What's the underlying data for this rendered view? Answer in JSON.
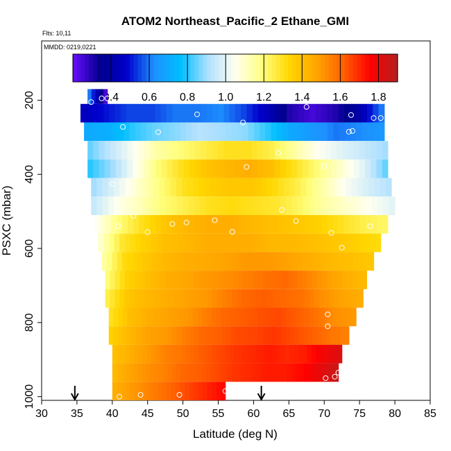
{
  "chart_data": {
    "type": "heatmap",
    "title": "ATOM2 Northeast_Pacific_2 Ethane_GMI",
    "flights_label": "Flts: 10,11",
    "date_label": "MMDD: 0219,0221",
    "xlabel": "Latitude (deg N)",
    "ylabel": "PSXC (mbar)",
    "xlim": [
      30,
      85
    ],
    "ylim": [
      1010,
      40
    ],
    "x_ticks": [
      30,
      35,
      40,
      45,
      50,
      55,
      60,
      65,
      70,
      75,
      80,
      85
    ],
    "y_ticks": [
      200,
      400,
      600,
      800,
      1000
    ],
    "colorbar": {
      "min": 0.2,
      "max": 1.9,
      "ticks": [
        0.4,
        0.6,
        0.8,
        1.0,
        1.2,
        1.4,
        1.6,
        1.8
      ],
      "tick_labels": [
        "0.4",
        "0.6",
        "0.8",
        "1.0",
        "1.2",
        "1.4",
        "1.6",
        "1.8"
      ],
      "colors": [
        "#6a0dff",
        "#00008b",
        "#0000cd",
        "#1e90ff",
        "#00bfff",
        "#b0e0ff",
        "#fffff0",
        "#ffff80",
        "#ffd700",
        "#ffa500",
        "#ff6000",
        "#ff0000",
        "#b22222"
      ]
    },
    "bands": [
      {
        "p_top": 170,
        "p_bot": 210,
        "lat_start": 36.5,
        "lat_end": 39.3,
        "values": [
          0.6,
          0.25
        ]
      },
      {
        "p_top": 210,
        "p_bot": 260,
        "lat_start": 35.5,
        "lat_end": 78.5,
        "values": [
          0.45,
          0.5,
          0.55,
          0.55,
          0.6,
          0.6,
          0.62,
          0.55,
          0.45,
          0.3,
          0.25,
          0.3,
          0.4,
          0.6
        ]
      },
      {
        "p_top": 260,
        "p_bot": 310,
        "lat_start": 36.0,
        "lat_end": 78.5,
        "values": [
          0.7,
          0.72,
          0.8,
          0.85,
          0.88,
          0.92,
          0.9,
          0.88,
          0.8,
          0.7,
          0.65,
          0.6,
          0.62,
          0.65
        ]
      },
      {
        "p_top": 310,
        "p_bot": 360,
        "lat_start": 36.5,
        "lat_end": 79.0,
        "values": [
          0.85,
          0.95,
          1.05,
          1.15,
          1.2,
          1.25,
          1.3,
          1.3,
          1.25,
          1.15,
          1.05,
          1.0,
          0.95,
          0.9
        ]
      },
      {
        "p_top": 360,
        "p_bot": 410,
        "lat_start": 36.5,
        "lat_end": 79.0,
        "values": [
          0.8,
          0.9,
          1.05,
          1.2,
          1.3,
          1.38,
          1.42,
          1.45,
          1.4,
          1.3,
          1.2,
          1.1,
          1.0,
          0.85
        ]
      },
      {
        "p_top": 410,
        "p_bot": 460,
        "lat_start": 37.0,
        "lat_end": 79.5,
        "values": [
          0.9,
          1.0,
          1.1,
          1.2,
          1.3,
          1.35,
          1.38,
          1.38,
          1.32,
          1.25,
          1.15,
          1.05,
          0.98,
          0.92
        ]
      },
      {
        "p_top": 460,
        "p_bot": 510,
        "lat_start": 37.0,
        "lat_end": 80.0,
        "values": [
          0.95,
          1.05,
          1.12,
          1.2,
          1.25,
          1.3,
          1.32,
          1.3,
          1.28,
          1.22,
          1.15,
          1.1,
          1.05,
          1.0
        ]
      },
      {
        "p_top": 510,
        "p_bot": 560,
        "lat_start": 37.5,
        "lat_end": 79.0,
        "values": [
          1.05,
          1.2,
          1.3,
          1.38,
          1.42,
          1.45,
          1.45,
          1.42,
          1.4,
          1.38,
          1.35,
          1.3,
          1.25,
          1.22
        ]
      },
      {
        "p_top": 560,
        "p_bot": 610,
        "lat_start": 38.0,
        "lat_end": 78.0,
        "values": [
          1.1,
          1.28,
          1.35,
          1.4,
          1.42,
          1.45,
          1.45,
          1.45,
          1.42,
          1.42,
          1.4,
          1.38,
          1.35,
          1.32
        ]
      },
      {
        "p_top": 610,
        "p_bot": 660,
        "lat_start": 38.5,
        "lat_end": 77.0,
        "values": [
          1.15,
          1.32,
          1.38,
          1.42,
          1.45,
          1.46,
          1.48,
          1.5,
          1.5,
          1.48,
          1.45,
          1.42,
          1.4,
          1.38
        ]
      },
      {
        "p_top": 660,
        "p_bot": 710,
        "lat_start": 39.0,
        "lat_end": 76.0,
        "values": [
          1.2,
          1.35,
          1.4,
          1.45,
          1.47,
          1.5,
          1.52,
          1.55,
          1.58,
          1.6,
          1.55,
          1.5,
          1.45,
          1.42
        ]
      },
      {
        "p_top": 710,
        "p_bot": 760,
        "lat_start": 39.0,
        "lat_end": 75.5,
        "values": [
          1.25,
          1.38,
          1.42,
          1.45,
          1.48,
          1.5,
          1.55,
          1.6,
          1.62,
          1.6,
          1.58,
          1.52,
          1.48,
          1.45
        ]
      },
      {
        "p_top": 760,
        "p_bot": 810,
        "lat_start": 39.5,
        "lat_end": 74.5,
        "values": [
          1.3,
          1.4,
          1.45,
          1.48,
          1.5,
          1.55,
          1.6,
          1.62,
          1.64,
          1.65,
          1.62,
          1.58,
          1.52,
          1.5
        ]
      },
      {
        "p_top": 810,
        "p_bot": 860,
        "lat_start": 39.5,
        "lat_end": 73.5,
        "values": [
          1.35,
          1.42,
          1.48,
          1.5,
          1.55,
          1.6,
          1.62,
          1.65,
          1.66,
          1.68,
          1.65,
          1.62,
          1.58,
          1.55
        ]
      },
      {
        "p_top": 860,
        "p_bot": 910,
        "lat_start": 40.0,
        "lat_end": 72.5,
        "values": [
          1.4,
          1.45,
          1.5,
          1.55,
          1.58,
          1.62,
          1.65,
          1.68,
          1.7,
          1.72,
          1.7,
          1.72,
          1.78,
          1.82
        ]
      },
      {
        "p_top": 910,
        "p_bot": 960,
        "lat_start": 40.0,
        "lat_end": 72.0,
        "values": [
          1.42,
          1.48,
          1.52,
          1.55,
          1.6,
          1.62,
          1.65,
          1.68,
          1.7,
          1.72,
          1.72,
          1.75,
          1.8,
          1.85
        ]
      },
      {
        "p_top": 960,
        "p_bot": 1010,
        "lat_start": 40.0,
        "lat_end": 56.0,
        "values": [
          1.45,
          1.5,
          1.55,
          1.6,
          1.65,
          1.7,
          1.75
        ]
      }
    ],
    "points": [
      [
        37.0,
        205
      ],
      [
        38.5,
        195
      ],
      [
        39.3,
        195
      ],
      [
        52.0,
        238
      ],
      [
        58.5,
        260
      ],
      [
        67.5,
        218
      ],
      [
        73.8,
        240
      ],
      [
        77.0,
        248
      ],
      [
        78.0,
        248
      ],
      [
        41.5,
        272
      ],
      [
        46.5,
        286
      ],
      [
        73.5,
        285
      ],
      [
        74.0,
        283
      ],
      [
        63.5,
        342
      ],
      [
        59.0,
        380
      ],
      [
        70.0,
        378
      ],
      [
        40.0,
        426
      ],
      [
        73.5,
        465
      ],
      [
        43.0,
        512
      ],
      [
        64.0,
        496
      ],
      [
        66.0,
        526
      ],
      [
        40.8,
        540
      ],
      [
        48.5,
        534
      ],
      [
        50.5,
        530
      ],
      [
        54.5,
        524
      ],
      [
        57.0,
        555
      ],
      [
        45.0,
        556
      ],
      [
        71.0,
        558
      ],
      [
        76.5,
        540
      ],
      [
        72.5,
        598
      ],
      [
        70.5,
        778
      ],
      [
        70.5,
        810
      ],
      [
        71.5,
        946
      ],
      [
        72.0,
        935
      ],
      [
        70.2,
        950
      ],
      [
        41.0,
        1000
      ],
      [
        44.0,
        995
      ],
      [
        49.5,
        995
      ],
      [
        56.0,
        985
      ]
    ],
    "arrows": [
      34.7,
      61.1
    ]
  }
}
